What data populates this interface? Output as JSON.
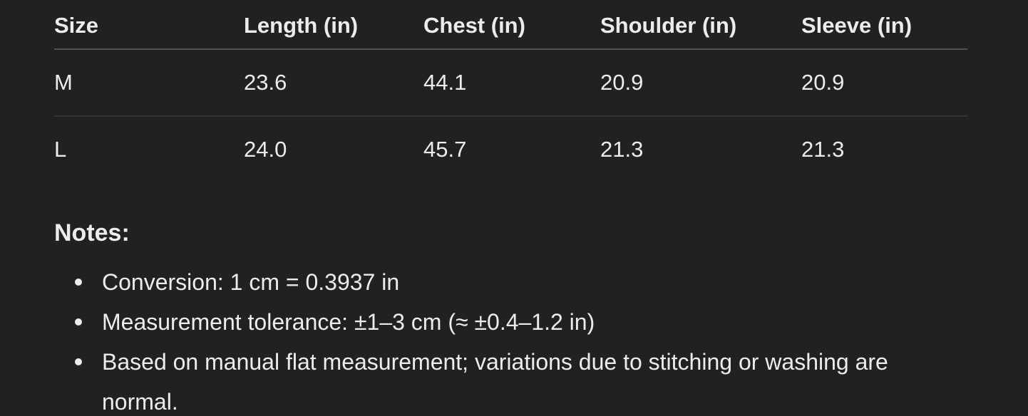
{
  "colors": {
    "background": "#212121",
    "text": "#ececec",
    "header_divider": "#4f4f4f",
    "row_divider": "#333333"
  },
  "size_chart": {
    "columns": [
      "Size",
      "Length (in)",
      "Chest (in)",
      "Shoulder (in)",
      "Sleeve (in)"
    ],
    "rows": [
      [
        "M",
        "23.6",
        "44.1",
        "20.9",
        "20.9"
      ],
      [
        "L",
        "24.0",
        "45.7",
        "21.3",
        "21.3"
      ]
    ]
  },
  "notes": {
    "heading": "Notes:",
    "items": [
      "Conversion: 1 cm = 0.3937 in",
      "Measurement tolerance: ±1–3 cm (≈ ±0.4–1.2 in)",
      "Based on manual flat measurement; variations due to stitching or washing are normal."
    ]
  }
}
